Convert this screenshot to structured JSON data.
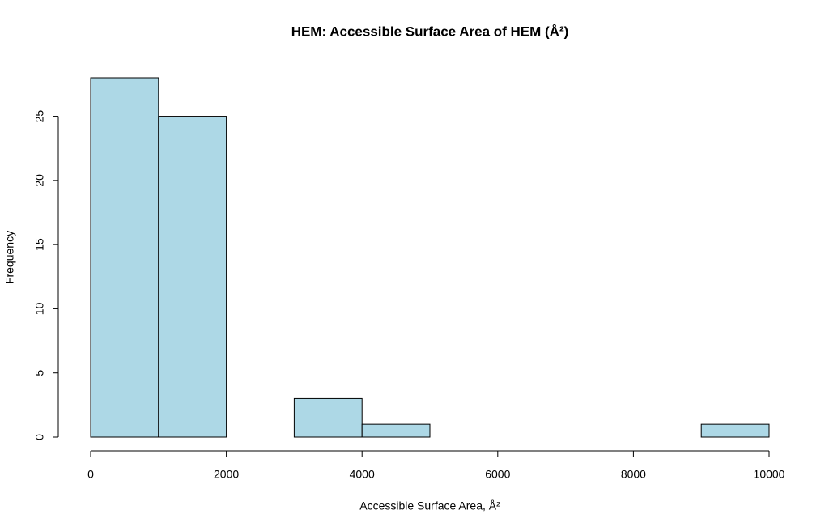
{
  "chart_data": {
    "type": "histogram",
    "title": "HEM: Accessible Surface Area of HEM (Å²)",
    "x_label": "Accessible Surface Area, Å²",
    "y_label": "Frequency",
    "bins": [
      0,
      1000,
      2000,
      3000,
      4000,
      5000,
      6000,
      7000,
      8000,
      9000,
      10000
    ],
    "counts": [
      28,
      25,
      0,
      3,
      1,
      0,
      0,
      0,
      0,
      1
    ],
    "color": "#add8e6",
    "xlim": [
      0,
      10000
    ],
    "xticks": [
      0,
      2000,
      4000,
      6000,
      8000,
      10000
    ],
    "ylim": [
      0,
      28
    ],
    "yticks": [
      0,
      5,
      10,
      15,
      20,
      25
    ]
  }
}
